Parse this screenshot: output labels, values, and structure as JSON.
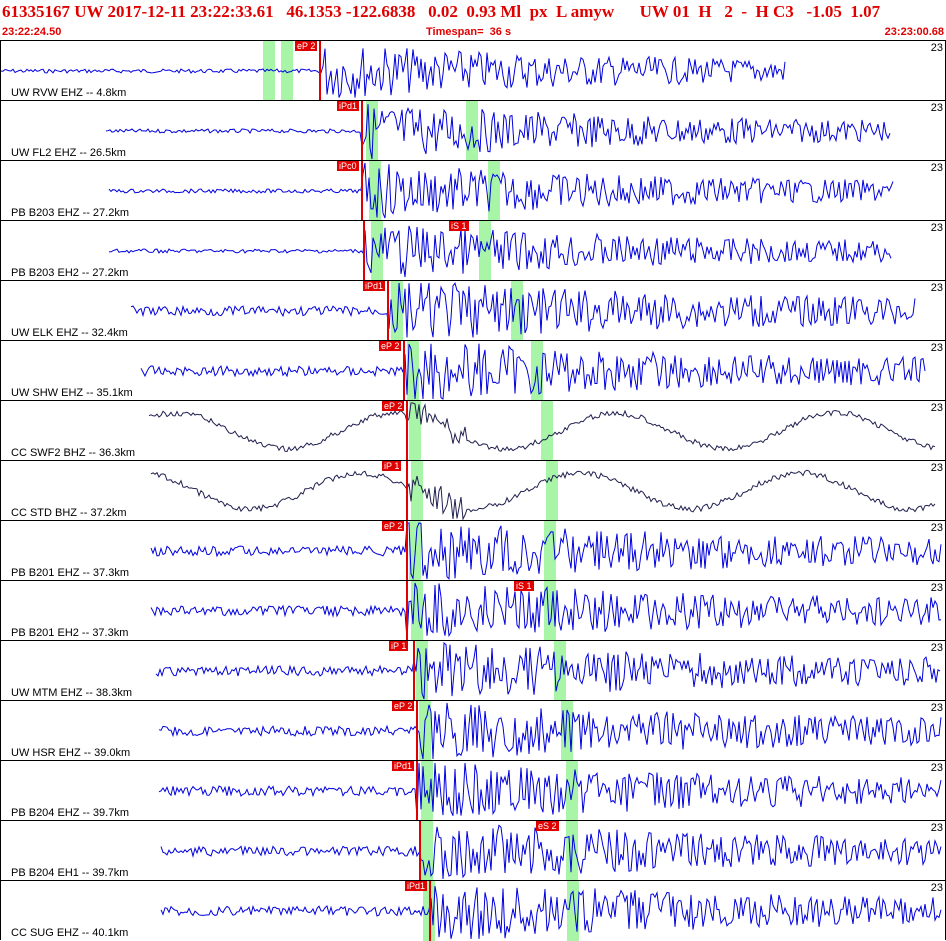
{
  "header": {
    "title": "61335167 UW 2017-12-11 23:22:33.61   46.1353 -122.6838   0.02  0.93 Ml  px  L amyw      UW 01  H   2  -  H C3   -1.05  1.07",
    "start_time": "23:22:24.50",
    "timespan": "Timespan=  36 s",
    "end_time": "23:23:00.68"
  },
  "colors": {
    "trace": "#0000dd",
    "trace_dark": "#202050",
    "pick": "#e00000",
    "window": "#a8f5a8"
  },
  "tracks": [
    {
      "label": "UW RVW EHZ -- 4.8km",
      "num": "23",
      "pick": "eP 2",
      "s_pick": ""
    },
    {
      "label": "UW FL2 EHZ -- 26.5km",
      "num": "23",
      "pick": "iPd1",
      "s_pick": ""
    },
    {
      "label": "PB B203 EHZ -- 27.2km",
      "num": "23",
      "pick": "iPc0",
      "s_pick": ""
    },
    {
      "label": "PB B203 EH2 -- 27.2km",
      "num": "23",
      "pick": "",
      "s_pick": "iS 1"
    },
    {
      "label": "UW ELK EHZ -- 32.4km",
      "num": "23",
      "pick": "iPd1",
      "s_pick": ""
    },
    {
      "label": "UW SHW EHZ -- 35.1km",
      "num": "23",
      "pick": "eP 2",
      "s_pick": ""
    },
    {
      "label": "CC SWF2 BHZ -- 36.3km",
      "num": "23",
      "pick": "eP 2",
      "s_pick": ""
    },
    {
      "label": "CC STD BHZ -- 37.2km",
      "num": "23",
      "pick": "iP 1",
      "s_pick": ""
    },
    {
      "label": "PB B201 EHZ -- 37.3km",
      "num": "23",
      "pick": "eP 2",
      "s_pick": ""
    },
    {
      "label": "PB B201 EH2 -- 37.3km",
      "num": "23",
      "pick": "",
      "s_pick": "iS 1"
    },
    {
      "label": "UW MTM EHZ -- 38.3km",
      "num": "23",
      "pick": "iP 1",
      "s_pick": ""
    },
    {
      "label": "UW HSR EHZ -- 39.0km",
      "num": "23",
      "pick": "eP 2",
      "s_pick": ""
    },
    {
      "label": "PB B204 EHZ -- 39.7km",
      "num": "23",
      "pick": "iPd1",
      "s_pick": ""
    },
    {
      "label": "PB B204 EH1 -- 39.7km",
      "num": "23",
      "pick": "",
      "s_pick": "eS 2"
    },
    {
      "label": "CC SUG EHZ -- 40.1km",
      "num": "23",
      "pick": "iPd1",
      "s_pick": ""
    }
  ]
}
